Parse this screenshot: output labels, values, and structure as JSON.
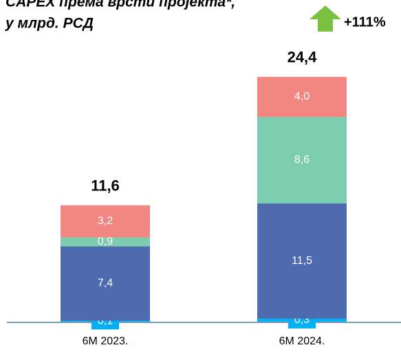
{
  "chart_data": {
    "type": "stacked-bar",
    "title": [
      "CAPEX према врсти пројекта*,",
      "у млрд. РСД"
    ],
    "annotation": "+111%",
    "categories": [
      "6M 2023.",
      "6M 2024."
    ],
    "series": [
      {
        "color": "#00b0f0",
        "values": [
          0.1,
          0.3
        ],
        "value_labels": [
          "0,1",
          "0,3"
        ]
      },
      {
        "color": "#4e6baf",
        "values": [
          7.4,
          11.5
        ],
        "value_labels": [
          "7,4",
          "11,5"
        ]
      },
      {
        "color": "#7ccdb0",
        "values": [
          0.9,
          8.6
        ],
        "value_labels": [
          "0,9",
          "8,6"
        ]
      },
      {
        "color": "#f28782",
        "values": [
          3.2,
          4.0
        ],
        "value_labels": [
          "3,2",
          "4,0"
        ]
      }
    ],
    "totals": {
      "values": [
        11.6,
        24.4
      ],
      "value_labels": [
        "11,6",
        "24,4"
      ]
    },
    "ylim": [
      0,
      25
    ]
  }
}
